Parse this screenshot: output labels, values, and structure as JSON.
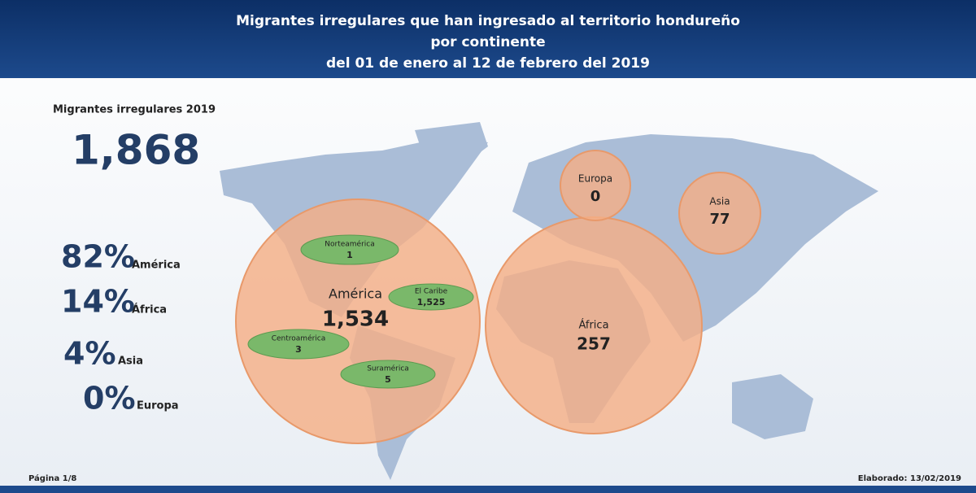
{
  "header": {
    "title_lines": [
      "Migrantes irregulares que han ingresado al territorio hondureño",
      "por continente",
      "del 01 de enero al 12 de febrero del 2019"
    ]
  },
  "summary": {
    "label": "Migrantes irregulares 2019",
    "total": "1,868",
    "shares": [
      {
        "percent": "82%",
        "continent": "América"
      },
      {
        "percent": "14%",
        "continent": "África"
      },
      {
        "percent": "4%",
        "continent": "Asia"
      },
      {
        "percent": "0%",
        "continent": "Europa"
      }
    ]
  },
  "map": {
    "regions": [
      {
        "name": "América",
        "value": "1,534",
        "subregions": [
          {
            "name": "Norteamérica",
            "value": "1"
          },
          {
            "name": "El Caribe",
            "value": "1,525"
          },
          {
            "name": "Centroamérica",
            "value": "3"
          },
          {
            "name": "Suramérica",
            "value": "5"
          }
        ]
      },
      {
        "name": "África",
        "value": "257"
      },
      {
        "name": "Europa",
        "value": "0"
      },
      {
        "name": "Asia",
        "value": "77"
      }
    ]
  },
  "footer": {
    "page": "Página 1/8",
    "elaborated": "Elaborado: 13/02/2019"
  }
}
